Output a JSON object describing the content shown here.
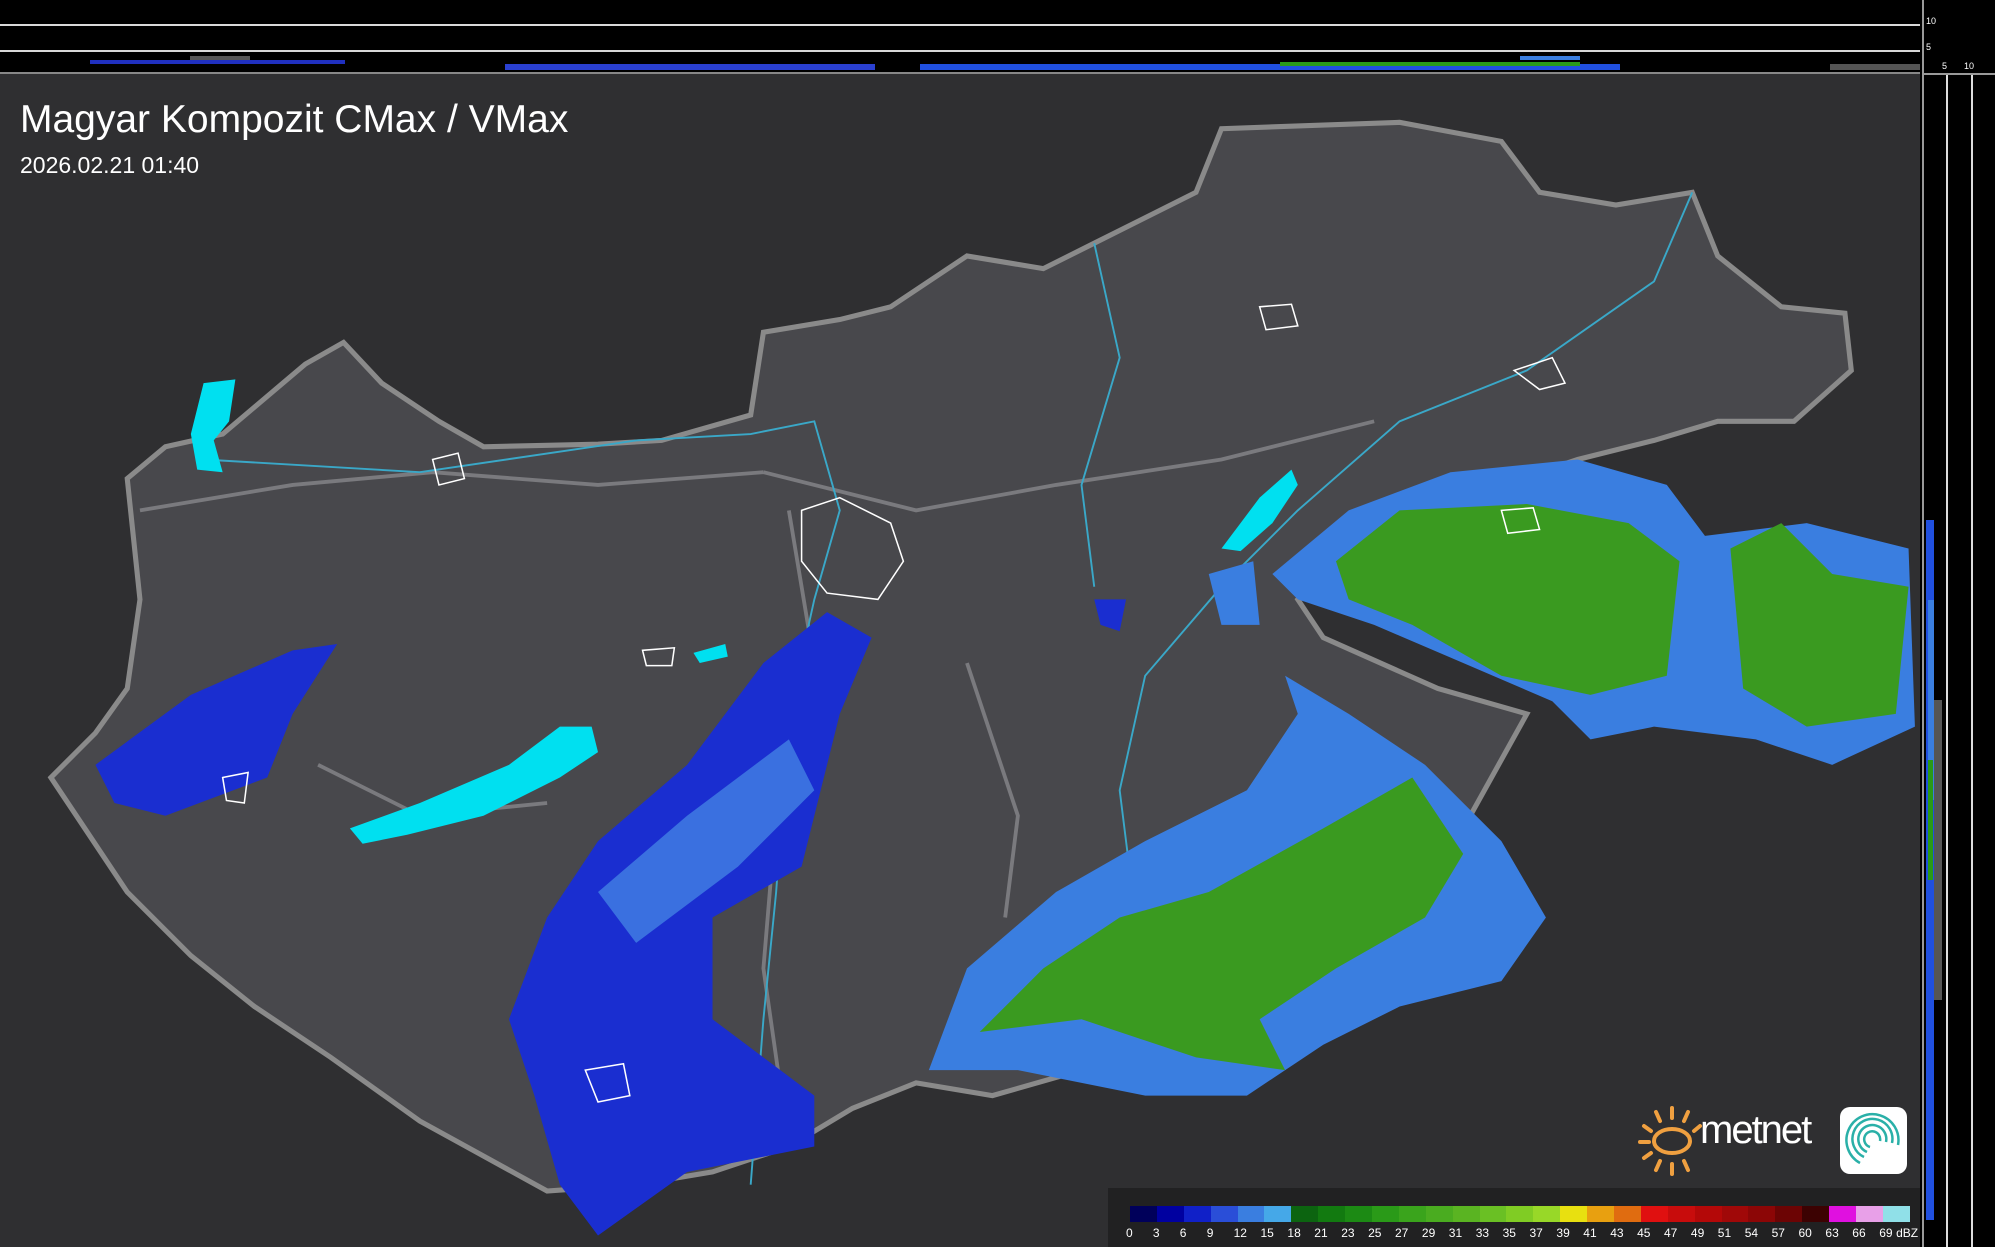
{
  "title": "Magyar Kompozit CMax / VMax",
  "timestamp": "2026.02.21 01:40",
  "profile_axes": {
    "top_ticks": [
      "10",
      "5"
    ],
    "right_ticks": [
      "5",
      "10"
    ]
  },
  "legend": {
    "unit": "dBZ",
    "labels": [
      "0",
      "3",
      "6",
      "9",
      "12",
      "15",
      "18",
      "21",
      "23",
      "25",
      "27",
      "29",
      "31",
      "33",
      "35",
      "37",
      "39",
      "41",
      "43",
      "45",
      "47",
      "49",
      "51",
      "54",
      "57",
      "60",
      "63",
      "66",
      "69"
    ],
    "colors": [
      "#00005a",
      "#0000a0",
      "#1020c8",
      "#2a4ed8",
      "#3a7ee0",
      "#45a8e8",
      "#0c6410",
      "#127a10",
      "#1c8a14",
      "#2a9a18",
      "#3aa41c",
      "#4aac20",
      "#5ab422",
      "#6ac024",
      "#80cc24",
      "#98d828",
      "#e8e010",
      "#e8a010",
      "#e06c10",
      "#e01010",
      "#c80c0c",
      "#b40808",
      "#a00808",
      "#8c0606",
      "#6c0404",
      "#3c0202",
      "#e010e0",
      "#e8a0e8",
      "#90e0e8"
    ]
  },
  "logo": {
    "brand": "metnet",
    "sun_color": "#f0a040"
  },
  "colors": {
    "lake": "#00e0f0",
    "border": "#8a8a8a",
    "river": "#3aa8c8",
    "city_outline": "#ffffff"
  }
}
